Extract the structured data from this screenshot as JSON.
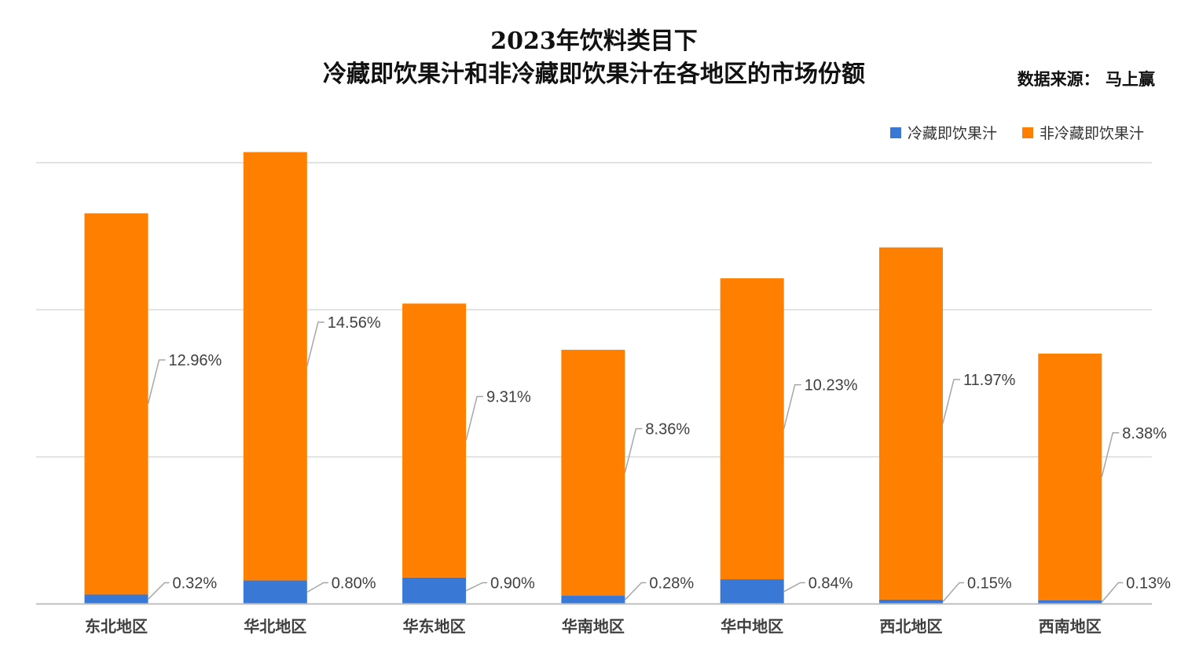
{
  "source": "数据来源：  马上赢",
  "chart_data": {
    "type": "bar",
    "stacked": true,
    "title": [
      "2023年饮料类目下",
      "冷藏即饮果汁和非冷藏即饮果汁在各地区的市场份额"
    ],
    "categories": [
      "东北地区",
      "华北地区",
      "华东地区",
      "华南地区",
      "华中地区",
      "西北地区",
      "西南地区"
    ],
    "series": [
      {
        "name": "冷藏即饮果汁",
        "color": "#3a78d6",
        "values": [
          0.32,
          0.8,
          0.9,
          0.28,
          0.84,
          0.15,
          0.13
        ],
        "labels": [
          "0.32%",
          "0.80%",
          "0.90%",
          "0.28%",
          "0.84%",
          "0.15%",
          "0.13%"
        ]
      },
      {
        "name": "非冷藏即饮果汁",
        "color": "#ff7f00",
        "values": [
          12.96,
          14.56,
          9.31,
          8.36,
          10.23,
          11.97,
          8.38
        ],
        "labels": [
          "12.96%",
          "14.56%",
          "9.31%",
          "8.36%",
          "10.23%",
          "11.97%",
          "8.38%"
        ]
      }
    ],
    "ylim": [
      0,
      15
    ],
    "gridlines": [
      5,
      10,
      15
    ],
    "xlabel": "",
    "ylabel": "",
    "legend_position": "top-right"
  }
}
